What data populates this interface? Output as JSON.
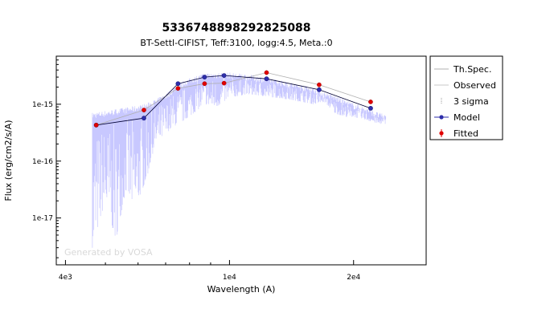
{
  "chart_data": {
    "type": "scatter",
    "title": "5336748898292825088",
    "subtitle": "BT-Settl-CIFIST, Teff:3100, logg:4.5, Meta.:0",
    "xlabel": "Wavelength (A)",
    "ylabel": "Flux (erg/cm2/s/A)",
    "x_scale": "log",
    "y_scale": "log",
    "xlim": [
      3800,
      30000
    ],
    "ylim": [
      1.5e-18,
      7e-15
    ],
    "x_ticks": [
      {
        "value": 4000,
        "label": "4e3"
      },
      {
        "value": 10000,
        "label": "1e4"
      },
      {
        "value": 20000,
        "label": "2e4"
      }
    ],
    "y_ticks": [
      {
        "value": 1e-15,
        "label": "1e-15"
      },
      {
        "value": 1e-16,
        "label": "1e-16"
      },
      {
        "value": 1e-17,
        "label": "1e-17"
      }
    ],
    "watermark": "Generated by VOSA",
    "legend": {
      "placement": "right",
      "entries": [
        {
          "label": "Th.Spec.",
          "color": "#b0b0b0"
        },
        {
          "label": "Observed",
          "color": "#c8c8c8"
        },
        {
          "label": "3 sigma",
          "color": "#999999"
        },
        {
          "label": "Model",
          "color": "#2e2eaa"
        },
        {
          "label": "Fitted",
          "color": "#e00000"
        }
      ]
    },
    "series": [
      {
        "name": "Model",
        "color": "#2e2eaa",
        "x": [
          4750,
          6200,
          7500,
          8700,
          9700,
          12300,
          16500,
          22000
        ],
        "y": [
          4.3e-16,
          5.7e-16,
          2.3e-15,
          3e-15,
          3.2e-15,
          2.8e-15,
          1.8e-15,
          8.5e-16
        ]
      },
      {
        "name": "Fitted",
        "color": "#e00000",
        "x": [
          4750,
          6200,
          7500,
          8700,
          9700,
          12300,
          16500,
          22000
        ],
        "y": [
          4.3e-16,
          7.9e-16,
          1.9e-15,
          2.3e-15,
          2.35e-15,
          3.6e-15,
          2.2e-15,
          1.1e-15
        ]
      },
      {
        "name": "Th.Spec.",
        "color": "#b0b0b0",
        "x": [
          4750,
          6200,
          7500,
          8700,
          9700,
          12300,
          16500,
          22000
        ],
        "y": [
          4.3e-16,
          7.9e-16,
          1.9e-15,
          2.3e-15,
          2.35e-15,
          3.6e-15,
          2.2e-15,
          1.1e-15
        ]
      }
    ],
    "spectrum": {
      "name": "Observed",
      "color": "#c8c8ff",
      "x": [
        4650,
        5000,
        5300,
        5600,
        5900,
        6300,
        6600,
        7000,
        7300,
        7700,
        8200,
        8700,
        9300,
        10000,
        11000,
        12000,
        13000,
        14000,
        15000,
        16000,
        17000,
        18000,
        19000,
        20000,
        21000,
        22000,
        23000,
        24000
      ],
      "y_top": [
        6.5e-16,
        7e-16,
        7.5e-16,
        8e-16,
        8.5e-16,
        9.5e-16,
        1.1e-15,
        1.4e-15,
        1.8e-15,
        2.3e-15,
        2.8e-15,
        3.2e-15,
        3.3e-15,
        3.3e-15,
        3.1e-15,
        2.8e-15,
        2.5e-15,
        2.2e-15,
        2e-15,
        1.8e-15,
        1.5e-15,
        1.3e-15,
        1.1e-15,
        9.5e-16,
        8.5e-16,
        7.5e-16,
        6.5e-16,
        6e-16
      ],
      "y_low": [
        3e-18,
        2e-17,
        4e-18,
        3e-17,
        1.5e-17,
        5e-17,
        2e-16,
        3e-16,
        4e-16,
        5e-16,
        7e-16,
        1e-15,
        9e-16,
        1.3e-15,
        1.5e-15,
        1.4e-15,
        1.3e-15,
        1.2e-15,
        1.1e-15,
        1e-15,
        1.1e-15,
        7e-16,
        6e-16,
        6e-16,
        5.5e-16,
        5e-16,
        4.5e-16,
        4.5e-16
      ]
    }
  }
}
